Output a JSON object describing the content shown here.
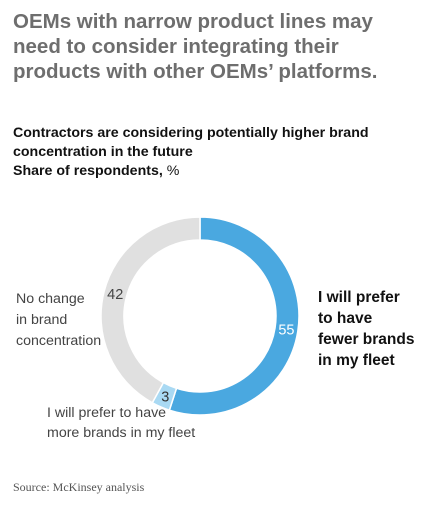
{
  "headline": {
    "line1": "OEMs with narrow product lines may",
    "line2": "need to consider integrating their",
    "line3": "products with other OEMs’ platforms."
  },
  "subtitle": {
    "line1": "Contractors are considering potentially higher brand",
    "line2": "concentration in the future",
    "line3": "Share of respondents,",
    "unit": "%"
  },
  "source": "Source: McKinsey analysis",
  "chart_data": {
    "type": "pie",
    "variant": "donut",
    "title": "Contractors are considering potentially higher brand concentration in the future",
    "ylabel": "Share of respondents, %",
    "series": [
      {
        "label": [
          "I will prefer",
          "to have",
          "fewer brands",
          "in my fleet"
        ],
        "value": 55,
        "color": "#4aa8e0",
        "label_bold": true
      },
      {
        "label": [
          "I will prefer to have",
          "more brands in my fleet"
        ],
        "value": 3,
        "color": "#a9d9f3",
        "label_bold": false
      },
      {
        "label": [
          "No change",
          "in brand",
          "concentration"
        ],
        "value": 42,
        "color": "#e0e0e0",
        "label_bold": false
      }
    ]
  }
}
